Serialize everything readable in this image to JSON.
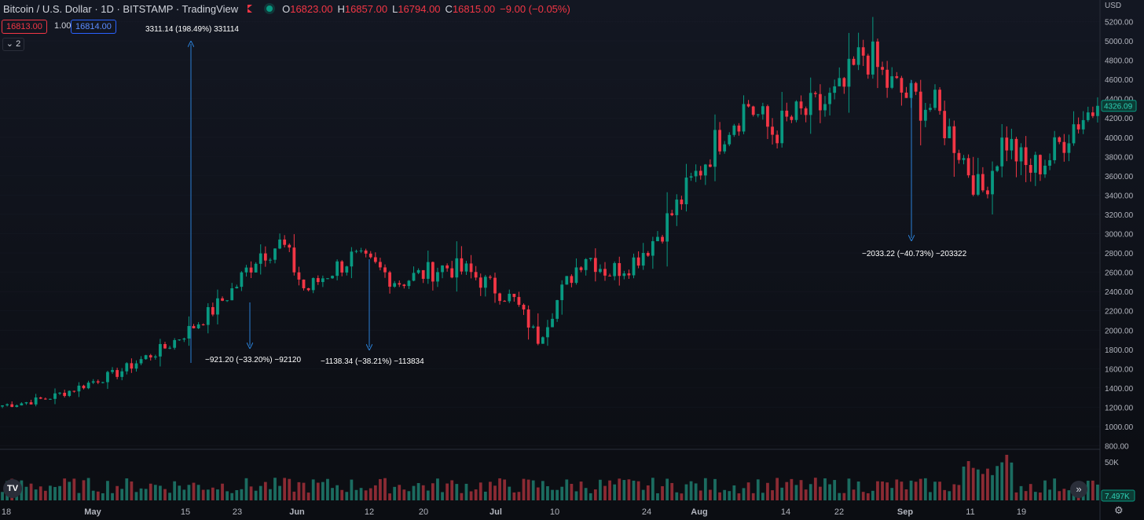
{
  "header": {
    "title": "Bitcoin / U.S. Dollar · 1D · BITSTAMP · TradingView",
    "ohlc": [
      {
        "k": "O",
        "v": "16823.00"
      },
      {
        "k": "H",
        "v": "16857.00"
      },
      {
        "k": "L",
        "v": "16794.00"
      },
      {
        "k": "C",
        "v": "16815.00"
      }
    ],
    "change": "−9.00 (−0.05%)",
    "sell_price": "16813.00",
    "quantity": "1.00",
    "buy_price": "16814.00",
    "indicators_collapsed": "2",
    "currency": "USD"
  },
  "icons": {
    "logo": "tradingview-logo-icon",
    "scroll": "chevron-double-right-icon",
    "settings": "gear-icon"
  },
  "colors": {
    "up": "#089981",
    "down": "#f23645",
    "measure": "#2a7fd6",
    "background": "#131722"
  },
  "chart_data": {
    "type": "candlestick",
    "price_axis": {
      "ticks": [
        "5200.00",
        "5000.00",
        "4800.00",
        "4600.00",
        "4400.00",
        "4200.00",
        "4000.00",
        "3800.00",
        "3600.00",
        "3400.00",
        "3200.00",
        "3000.00",
        "2800.00",
        "2600.00",
        "2400.00",
        "2200.00",
        "2000.00",
        "1800.00",
        "1600.00",
        "1400.00",
        "1200.00",
        "1000.00",
        "800.00"
      ],
      "last_price": "4326.09"
    },
    "volume_axis": {
      "ticks": [
        "50K"
      ],
      "last_volume": "7.497K"
    },
    "time_axis": [
      "18",
      "May",
      "15",
      "23",
      "Jun",
      "12",
      "20",
      "Jul",
      "10",
      "24",
      "Aug",
      "14",
      "22",
      "Sep",
      "11",
      "19"
    ],
    "anchors": [
      1220,
      1250,
      1300,
      1380,
      1480,
      1560,
      1700,
      1820,
      2000,
      2200,
      2450,
      2800,
      2900,
      2400,
      2600,
      2750,
      2650,
      2500,
      2580,
      2660,
      2600,
      2450,
      2300,
      1900,
      2400,
      2800,
      2600,
      2700,
      2950,
      3300,
      3700,
      4100,
      4350,
      4050,
      4200,
      4300,
      4450,
      4900,
      4550,
      4400,
      4300,
      3900,
      3400,
      4000,
      3650,
      3800,
      4150,
      4326
    ],
    "annotations": [
      {
        "label": "3311.14 (198.49%) 331114"
      },
      {
        "label": "−921.20 (−33.20%) −92120"
      },
      {
        "label": "−1138.34 (−38.21%) −113834"
      },
      {
        "label": "−2033.22 (−40.73%) −203322"
      }
    ]
  }
}
